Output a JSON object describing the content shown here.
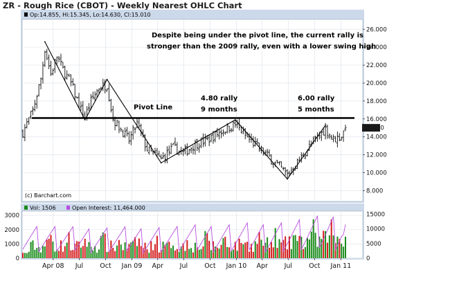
{
  "title": "ZR - Rough Rice (CBOT) - Weekly Nearest OHLC Chart",
  "ohlc_header": "Op:14.855, Hi:15.345, Lo:14.630, Cl:15.010",
  "copyright": "(c) Barchart.com",
  "last_price_tag": "15.010",
  "colors": {
    "frame_bg": "#ccd9ea",
    "plot_bg": "#ffffff",
    "grid": "#dfe4ea",
    "bars": "#222222",
    "pivot": "#000000",
    "swing": "#000000",
    "price_tag": "#1a1a1a",
    "vol_up": "#1a8c1a",
    "vol_down": "#d31c1c",
    "open_interest": "#b84fe0"
  },
  "annotations": {
    "main_note_line1": "Despite being under the pivot line, the current rally is",
    "main_note_line2": "stronger than the 2009 rally, even with a lower swing high",
    "pivot_label": "Pivot Line",
    "rally1_line1": "4.80 rally",
    "rally1_line2": "9 months",
    "rally2_line1": "6.00 rally",
    "rally2_line2": "5 months"
  },
  "legend": {
    "vol_label": "Vol: 1506",
    "oi_label": "Open Interest: 11,464.000"
  },
  "chart_data": [
    {
      "type": "ohlc",
      "title": "ZR - Rough Rice (CBOT) - Weekly Nearest OHLC Chart",
      "x_tick_labels": [
        "Apr 08",
        "Jul",
        "Oct",
        "Jan 09",
        "Apr",
        "Jul",
        "Oct",
        "Jan 10",
        "Apr",
        "Jul",
        "Oct",
        "Jan 11"
      ],
      "y_tick_labels": [
        "8.000",
        "10.000",
        "12.000",
        "14.000",
        "16.000",
        "18.000",
        "20.000",
        "22.000",
        "24.000",
        "26.000"
      ],
      "ylim": [
        6.8,
        27.1
      ],
      "y_axis_side": "right",
      "grid": true,
      "pivot_line": 16.1,
      "swing_points": [
        {
          "date": "2008-03-03",
          "price": 24.6
        },
        {
          "date": "2008-07-21",
          "price": 15.9
        },
        {
          "date": "2008-10-06",
          "price": 20.4
        },
        {
          "date": "2009-04-13",
          "price": 11.1
        },
        {
          "date": "2009-12-28",
          "price": 15.9
        },
        {
          "date": "2010-06-28",
          "price": 9.3
        },
        {
          "date": "2010-11-08",
          "price": 15.3
        }
      ],
      "last": {
        "open": 14.855,
        "high": 15.345,
        "low": 14.63,
        "close": 15.01
      },
      "weekly_close_path": [
        {
          "date": "2007-12-17",
          "close": 14.5
        },
        {
          "date": "2008-01-21",
          "close": 16.9
        },
        {
          "date": "2008-02-18",
          "close": 20.5
        },
        {
          "date": "2008-03-03",
          "close": 23.8
        },
        {
          "date": "2008-03-24",
          "close": 21.0
        },
        {
          "date": "2008-04-14",
          "close": 23.0
        },
        {
          "date": "2008-05-05",
          "close": 21.5
        },
        {
          "date": "2008-06-02",
          "close": 20.0
        },
        {
          "date": "2008-06-30",
          "close": 17.5
        },
        {
          "date": "2008-07-21",
          "close": 16.2
        },
        {
          "date": "2008-08-11",
          "close": 18.0
        },
        {
          "date": "2008-09-08",
          "close": 19.5
        },
        {
          "date": "2008-10-06",
          "close": 19.8
        },
        {
          "date": "2008-10-27",
          "close": 16.0
        },
        {
          "date": "2008-11-24",
          "close": 14.8
        },
        {
          "date": "2008-12-22",
          "close": 13.6
        },
        {
          "date": "2009-01-19",
          "close": 15.5
        },
        {
          "date": "2009-02-23",
          "close": 12.6
        },
        {
          "date": "2009-04-13",
          "close": 11.5
        },
        {
          "date": "2009-05-25",
          "close": 12.8
        },
        {
          "date": "2009-06-29",
          "close": 12.2
        },
        {
          "date": "2009-08-10",
          "close": 13.2
        },
        {
          "date": "2009-09-21",
          "close": 13.6
        },
        {
          "date": "2009-11-02",
          "close": 14.5
        },
        {
          "date": "2009-12-28",
          "close": 15.4
        },
        {
          "date": "2010-02-08",
          "close": 13.9
        },
        {
          "date": "2010-03-22",
          "close": 12.7
        },
        {
          "date": "2010-05-03",
          "close": 11.5
        },
        {
          "date": "2010-06-28",
          "close": 9.8
        },
        {
          "date": "2010-08-09",
          "close": 11.4
        },
        {
          "date": "2010-09-20",
          "close": 13.2
        },
        {
          "date": "2010-11-08",
          "close": 14.9
        },
        {
          "date": "2010-12-06",
          "close": 13.7
        },
        {
          "date": "2011-01-03",
          "close": 14.1
        },
        {
          "date": "2011-01-17",
          "close": 15.01
        }
      ]
    },
    {
      "type": "bar",
      "subtype": "volume_and_open_interest",
      "series": [
        {
          "name": "Vol",
          "last": 1506
        },
        {
          "name": "Open Interest",
          "last": 11464
        }
      ],
      "y_left_ticks": [
        "0",
        "1000",
        "2000",
        "3000"
      ],
      "y_right_ticks": [
        "0",
        "5000",
        "10000",
        "15000"
      ],
      "ylim_left": [
        0,
        3300
      ],
      "ylim_right": [
        0,
        16000
      ],
      "volume_path": [
        {
          "date": "2007-12-17",
          "vol": 300
        },
        {
          "date": "2008-03-03",
          "vol": 900
        },
        {
          "date": "2008-07-21",
          "vol": 800
        },
        {
          "date": "2009-01-19",
          "vol": 800
        },
        {
          "date": "2009-07-13",
          "vol": 800
        },
        {
          "date": "2010-01-11",
          "vol": 900
        },
        {
          "date": "2010-07-12",
          "vol": 1000
        },
        {
          "date": "2010-11-08",
          "vol": 1300
        },
        {
          "date": "2011-01-17",
          "vol": 1506
        }
      ],
      "open_interest_path": [
        {
          "date": "2007-12-17",
          "oi": 10500
        },
        {
          "date": "2008-06-30",
          "oi": 9500
        },
        {
          "date": "2009-06-29",
          "oi": 10000
        },
        {
          "date": "2010-06-28",
          "oi": 11500
        },
        {
          "date": "2011-01-03",
          "oi": 14000
        },
        {
          "date": "2011-01-17",
          "oi": 11464
        }
      ]
    }
  ]
}
